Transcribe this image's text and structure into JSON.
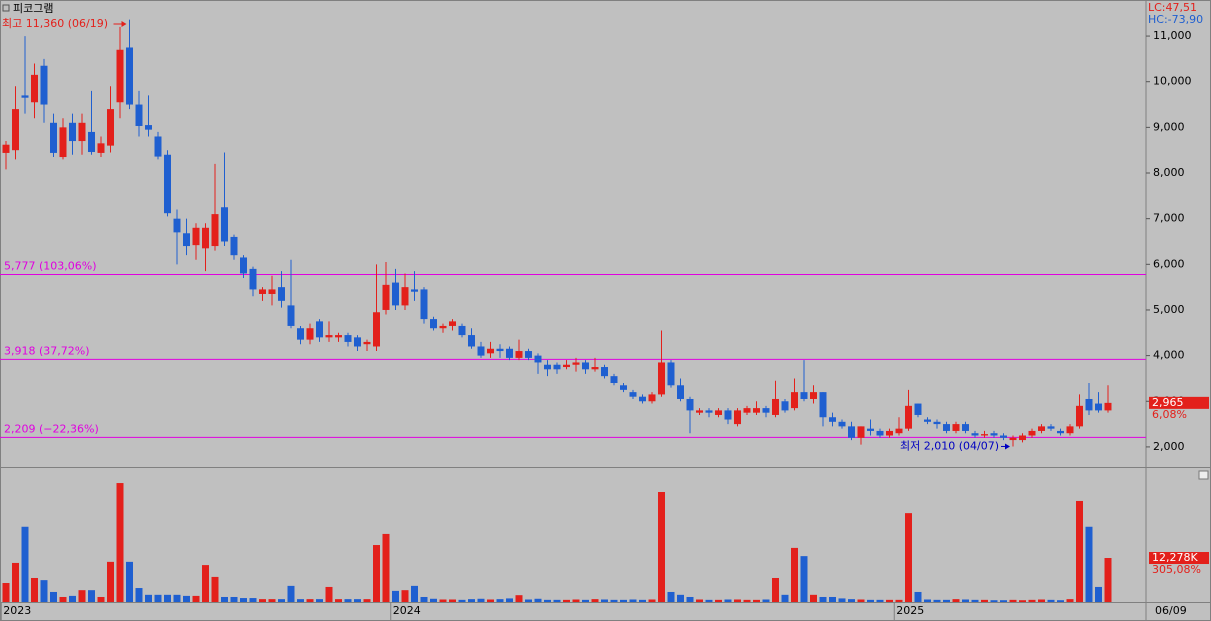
{
  "chart_data": {
    "type": "candlestick",
    "title": "피코그램",
    "candles": {
      "open": [
        8440,
        8500,
        9700,
        9550,
        10350,
        9100,
        8350,
        9100,
        8700,
        8900,
        8440,
        8600,
        9550,
        10750,
        9500,
        9050,
        8800,
        8400,
        7000,
        6680,
        6420,
        6350,
        6400,
        7250,
        6600,
        6150,
        5900,
        5350,
        5350,
        5500,
        5100,
        4600,
        4350,
        4750,
        4400,
        4400,
        4450,
        4400,
        4250,
        4200,
        5000,
        5600,
        5100,
        5450,
        5450,
        4800,
        4600,
        4650,
        4650,
        4450,
        4200,
        4050,
        4150,
        4150,
        3950,
        4100,
        4000,
        3800,
        3800,
        3750,
        3800,
        3850,
        3700,
        3750,
        3550,
        3350,
        3200,
        3100,
        3000,
        3150,
        3850,
        3350,
        3050,
        2750,
        2800,
        2700,
        2800,
        2500,
        2750,
        2750,
        2850,
        2700,
        3000,
        2850,
        3200,
        3050,
        3200,
        2650,
        2550,
        2450,
        2200,
        2400,
        2350,
        2250,
        2300,
        2400,
        2950,
        2600,
        2550,
        2500,
        2350,
        2500,
        2300,
        2250,
        2300,
        2250,
        2150,
        2150,
        2250,
        2350,
        2450,
        2350,
        2300,
        2450,
        3050,
        2950,
        2800
      ],
      "high": [
        8700,
        9900,
        11000,
        10400,
        10500,
        9300,
        9200,
        9300,
        9300,
        9800,
        8800,
        9900,
        11200,
        11360,
        9800,
        9700,
        8900,
        8500,
        7200,
        7000,
        6900,
        6900,
        8200,
        8450,
        6650,
        6200,
        5950,
        5500,
        5750,
        5850,
        6100,
        4650,
        4700,
        4800,
        4750,
        4500,
        4500,
        4450,
        4350,
        6000,
        6050,
        5900,
        5800,
        5850,
        5500,
        4850,
        4700,
        4800,
        4700,
        4600,
        4300,
        4300,
        4250,
        4200,
        4350,
        4150,
        4050,
        3900,
        3850,
        3900,
        3950,
        3900,
        3950,
        3800,
        3600,
        3400,
        3250,
        3150,
        3200,
        4550,
        3900,
        3500,
        3100,
        2850,
        2850,
        2850,
        2850,
        2850,
        2900,
        3000,
        2900,
        3450,
        3050,
        3500,
        3900,
        3350,
        3200,
        2750,
        2600,
        2550,
        2450,
        2600,
        2400,
        2400,
        2650,
        3250,
        2950,
        2650,
        2600,
        2550,
        2550,
        2550,
        2350,
        2350,
        2350,
        2300,
        2250,
        2300,
        2400,
        2500,
        2500,
        2400,
        2500,
        3150,
        3400,
        3200,
        3350
      ],
      "low": [
        8080,
        8300,
        9300,
        9200,
        9100,
        8350,
        8300,
        8400,
        8400,
        8400,
        8350,
        8450,
        9200,
        9400,
        8800,
        8800,
        8300,
        7050,
        6000,
        6200,
        6100,
        5850,
        6300,
        6400,
        6100,
        5700,
        5300,
        5200,
        5100,
        5050,
        4600,
        4250,
        4250,
        4300,
        4300,
        4300,
        4200,
        4100,
        4100,
        4100,
        4900,
        5000,
        5000,
        5200,
        4700,
        4550,
        4500,
        4550,
        4400,
        4150,
        3950,
        3950,
        3950,
        3900,
        3900,
        3900,
        3600,
        3550,
        3600,
        3700,
        3650,
        3600,
        3650,
        3500,
        3350,
        3200,
        3050,
        2950,
        2950,
        3100,
        3300,
        3000,
        2300,
        2700,
        2650,
        2650,
        2500,
        2450,
        2700,
        2700,
        2650,
        2650,
        2750,
        2800,
        3000,
        2950,
        2450,
        2450,
        2400,
        2150,
        2050,
        2250,
        2200,
        2200,
        2250,
        2350,
        2650,
        2500,
        2400,
        2300,
        2300,
        2300,
        2200,
        2200,
        2200,
        2150,
        2010,
        2100,
        2200,
        2300,
        2350,
        2250,
        2250,
        2400,
        2700,
        2750,
        2750
      ],
      "close": [
        8620,
        9400,
        9650,
        10150,
        9500,
        8440,
        9000,
        8700,
        9100,
        8460,
        8650,
        9400,
        10700,
        9500,
        9030,
        8950,
        8360,
        7120,
        6700,
        6400,
        6800,
        6800,
        7100,
        6500,
        6200,
        5800,
        5450,
        5450,
        5450,
        5200,
        4650,
        4350,
        4600,
        4400,
        4450,
        4450,
        4300,
        4200,
        4300,
        4950,
        5550,
        5100,
        5500,
        5400,
        4800,
        4600,
        4650,
        4750,
        4450,
        4200,
        4000,
        4150,
        4100,
        3950,
        4100,
        3950,
        3850,
        3700,
        3700,
        3800,
        3850,
        3700,
        3750,
        3550,
        3400,
        3250,
        3100,
        3000,
        3150,
        3850,
        3350,
        3050,
        2800,
        2800,
        2750,
        2800,
        2600,
        2800,
        2850,
        2850,
        2750,
        3050,
        2800,
        3200,
        3050,
        3200,
        2650,
        2550,
        2450,
        2200,
        2450,
        2350,
        2250,
        2350,
        2400,
        2900,
        2700,
        2550,
        2500,
        2350,
        2500,
        2350,
        2250,
        2280,
        2250,
        2200,
        2200,
        2250,
        2350,
        2450,
        2400,
        2300,
        2450,
        2900,
        2800,
        2800,
        2965
      ]
    },
    "volume": {
      "values": [
        5300,
        10900,
        21000,
        6700,
        6100,
        2800,
        1400,
        1700,
        3300,
        3300,
        1400,
        11200,
        33200,
        11200,
        3900,
        2000,
        2000,
        2000,
        2000,
        1700,
        1700,
        10300,
        7000,
        1400,
        1400,
        1100,
        1100,
        800,
        800,
        800,
        4500,
        800,
        800,
        800,
        4200,
        800,
        800,
        800,
        800,
        15900,
        19000,
        3100,
        3300,
        4500,
        1400,
        900,
        700,
        700,
        600,
        800,
        900,
        700,
        800,
        1000,
        1900,
        700,
        900,
        600,
        600,
        600,
        700,
        600,
        800,
        700,
        600,
        600,
        700,
        600,
        700,
        30700,
        2800,
        2000,
        1400,
        700,
        600,
        600,
        700,
        700,
        600,
        600,
        700,
        6700,
        2000,
        15100,
        12800,
        2000,
        1400,
        1400,
        1000,
        800,
        700,
        600,
        600,
        600,
        600,
        24800,
        2800,
        700,
        600,
        600,
        800,
        700,
        600,
        600,
        500,
        500,
        600,
        500,
        600,
        700,
        600,
        500,
        800,
        28200,
        21000,
        4200,
        12278
      ],
      "ylim": [
        0,
        37400
      ],
      "last": {
        "value": 12278,
        "label": "12,278K"
      },
      "change": "305,08%"
    },
    "categories": [
      "2023",
      null,
      null,
      null,
      null,
      null,
      null,
      null,
      null,
      null,
      null,
      null,
      null,
      null,
      null,
      null,
      null,
      null,
      null,
      null,
      null,
      null,
      null,
      null,
      null,
      null,
      null,
      null,
      null,
      null,
      null,
      null,
      null,
      null,
      null,
      null,
      null,
      null,
      null,
      null,
      null,
      "2024",
      null,
      null,
      null,
      null,
      null,
      null,
      null,
      null,
      null,
      null,
      null,
      null,
      null,
      null,
      null,
      null,
      null,
      null,
      null,
      null,
      null,
      null,
      null,
      null,
      null,
      null,
      null,
      null,
      null,
      null,
      null,
      null,
      null,
      null,
      null,
      null,
      null,
      null,
      null,
      null,
      null,
      null,
      null,
      null,
      null,
      null,
      null,
      null,
      null,
      null,
      null,
      null,
      "2025",
      null,
      null,
      null,
      null,
      null,
      null,
      null,
      null,
      null,
      null,
      null,
      null,
      null,
      null,
      null,
      null,
      null,
      null,
      null,
      null,
      null,
      null
    ],
    "last_date": "06/09",
    "ylim": [
      1560,
      11790
    ],
    "yticks": [
      {
        "value": 2000,
        "label": "2,000"
      },
      {
        "value": 3000,
        "label": "3,000"
      },
      {
        "value": 4000,
        "label": "4,000"
      },
      {
        "value": 5000,
        "label": "5,000"
      },
      {
        "value": 6000,
        "label": "6,000"
      },
      {
        "value": 7000,
        "label": "7,000"
      },
      {
        "value": 8000,
        "label": "8,000"
      },
      {
        "value": 9000,
        "label": "9,000"
      },
      {
        "value": 10000,
        "label": "10,000"
      },
      {
        "value": 11000,
        "label": "11,000"
      }
    ],
    "levels": [
      {
        "value": 5777,
        "label": "5,777 (103,06%)"
      },
      {
        "value": 3918,
        "label": "3,918 (37,72%)"
      },
      {
        "value": 2209,
        "label": "2,209 (−22,36%)"
      }
    ],
    "high_mark": {
      "value": 11360,
      "label": "최고 11,360 (06/19)"
    },
    "low_mark": {
      "value": 2010,
      "label": "최저 2,010 (04/07)"
    },
    "current": {
      "value": 2965,
      "label": "2,965"
    },
    "current_change": "6,08%",
    "lc": "LC:47,51",
    "hc": "HC:-73,90",
    "up_color": "#e3201b",
    "down_color": "#1f5fd0",
    "level_color": "#e000e0"
  }
}
